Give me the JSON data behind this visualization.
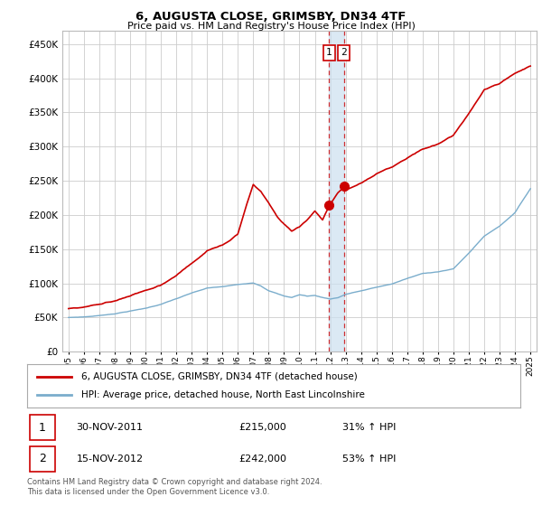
{
  "title": "6, AUGUSTA CLOSE, GRIMSBY, DN34 4TF",
  "subtitle": "Price paid vs. HM Land Registry's House Price Index (HPI)",
  "legend_line1": "6, AUGUSTA CLOSE, GRIMSBY, DN34 4TF (detached house)",
  "legend_line2": "HPI: Average price, detached house, North East Lincolnshire",
  "transaction1_date": "30-NOV-2011",
  "transaction1_price": "£215,000",
  "transaction1_hpi": "31% ↑ HPI",
  "transaction2_date": "15-NOV-2012",
  "transaction2_price": "£242,000",
  "transaction2_hpi": "53% ↑ HPI",
  "footnote": "Contains HM Land Registry data © Crown copyright and database right 2024.\nThis data is licensed under the Open Government Licence v3.0.",
  "line1_color": "#cc0000",
  "line2_color": "#7aadcc",
  "vline_color": "#cc0000",
  "shade_color": "#cce0f0",
  "marker_color": "#cc0000",
  "background_color": "#ffffff",
  "grid_color": "#cccccc",
  "ylim_min": 0,
  "ylim_max": 470000,
  "yticks": [
    0,
    50000,
    100000,
    150000,
    200000,
    250000,
    300000,
    350000,
    400000,
    450000
  ],
  "transaction1_year": 2011.92,
  "transaction2_year": 2012.88,
  "transaction1_price_val": 215000,
  "transaction2_price_val": 242000,
  "hpi_keypoints": {
    "years": [
      1995.0,
      1996.0,
      1997.0,
      1998.0,
      1999.0,
      2000.0,
      2001.0,
      2002.0,
      2003.0,
      2004.0,
      2005.0,
      2006.0,
      2007.0,
      2007.5,
      2008.0,
      2009.0,
      2009.5,
      2010.0,
      2010.5,
      2011.0,
      2011.5,
      2012.0,
      2012.5,
      2013.0,
      2014.0,
      2015.0,
      2016.0,
      2017.0,
      2018.0,
      2019.0,
      2020.0,
      2021.0,
      2022.0,
      2023.0,
      2024.0,
      2025.0
    ],
    "values": [
      50000,
      51000,
      53000,
      56000,
      60000,
      64000,
      70000,
      78000,
      86000,
      93000,
      95000,
      98000,
      101000,
      97000,
      90000,
      82000,
      80000,
      84000,
      82000,
      83000,
      80000,
      78000,
      80000,
      85000,
      90000,
      95000,
      100000,
      108000,
      115000,
      118000,
      122000,
      145000,
      170000,
      185000,
      205000,
      240000
    ]
  },
  "prop_keypoints": {
    "years": [
      1995.0,
      1996.0,
      1997.0,
      1998.0,
      1999.0,
      2000.0,
      2001.0,
      2002.0,
      2003.0,
      2004.0,
      2005.0,
      2005.5,
      2006.0,
      2006.5,
      2007.0,
      2007.5,
      2008.0,
      2008.5,
      2009.0,
      2009.5,
      2010.0,
      2010.5,
      2011.0,
      2011.5,
      2011.92,
      2012.5,
      2012.88,
      2013.0,
      2014.0,
      2015.0,
      2016.0,
      2017.0,
      2018.0,
      2019.0,
      2020.0,
      2021.0,
      2022.0,
      2023.0,
      2024.0,
      2025.0
    ],
    "values": [
      63000,
      66000,
      70000,
      76000,
      83000,
      90000,
      98000,
      112000,
      130000,
      148000,
      155000,
      162000,
      172000,
      210000,
      245000,
      235000,
      218000,
      200000,
      188000,
      178000,
      185000,
      195000,
      208000,
      195000,
      215000,
      235000,
      242000,
      238000,
      248000,
      262000,
      272000,
      285000,
      298000,
      305000,
      318000,
      350000,
      385000,
      395000,
      410000,
      420000
    ]
  }
}
